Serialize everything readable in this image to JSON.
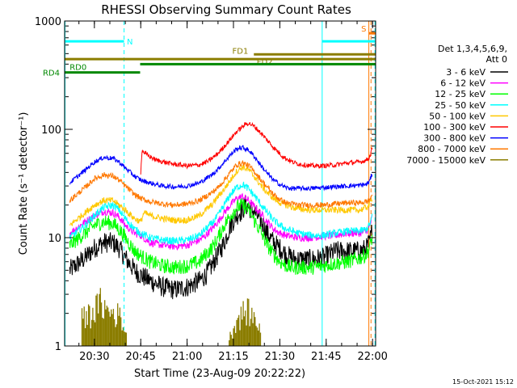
{
  "chart_data": {
    "type": "line",
    "title": "RHESSI Observing Summary Count Rates",
    "xlabel": "Start Time (23-Aug-09 20:22:22)",
    "ylabel": "Count Rate (s⁻¹ detector⁻¹)",
    "x_start_minutes": 20.37,
    "xlim_minutes": [
      20.37,
      121
    ],
    "ylim": [
      1,
      1000
    ],
    "yscale": "log",
    "xticks": [
      {
        "min": 30,
        "label": "20:30"
      },
      {
        "min": 45,
        "label": "20:45"
      },
      {
        "min": 60,
        "label": "21:00"
      },
      {
        "min": 75,
        "label": "21:15"
      },
      {
        "min": 90,
        "label": "21:30"
      },
      {
        "min": 105,
        "label": "21:45"
      },
      {
        "min": 120,
        "label": "22:00"
      }
    ],
    "yticks": [
      {
        "v": 1,
        "label": "1"
      },
      {
        "v": 10,
        "label": "10"
      },
      {
        "v": 100,
        "label": "100"
      },
      {
        "v": 1000,
        "label": "1000"
      }
    ],
    "legend": {
      "placement": "right",
      "header": [
        "Det 1,3,4,5,6,9,",
        "Att 0"
      ]
    },
    "series": [
      {
        "name": "3 - 6 keV",
        "color": "#000000",
        "x": [
          22,
          27,
          30,
          33,
          36,
          38,
          40,
          43,
          45,
          48,
          52,
          56,
          60,
          64,
          66,
          68,
          70,
          72,
          74,
          76,
          78,
          79,
          80,
          82,
          84,
          86,
          88,
          90,
          92,
          94,
          96,
          100,
          104,
          108,
          112,
          116,
          118,
          119,
          120
        ],
        "y": [
          5,
          6.5,
          8,
          9,
          9,
          8,
          6.5,
          5,
          4.5,
          4,
          3.5,
          3.3,
          3.5,
          4,
          4.5,
          5.5,
          7,
          9,
          13,
          16,
          18,
          20,
          19,
          17,
          14,
          11,
          9,
          8,
          7,
          6.5,
          6.3,
          6.3,
          6.5,
          7.5,
          7.5,
          7.5,
          8,
          9,
          12
        ]
      },
      {
        "name": "6 - 12 keV",
        "color": "#ff00ff",
        "x": [
          22,
          27,
          30,
          33,
          36,
          38,
          40,
          43,
          45,
          48,
          52,
          56,
          60,
          64,
          66,
          68,
          70,
          72,
          74,
          76,
          78,
          80,
          82,
          84,
          86,
          88,
          90,
          92,
          94,
          96,
          100,
          104,
          108,
          112,
          116,
          118,
          119,
          120
        ],
        "y": [
          11,
          14,
          16,
          17.5,
          17,
          15.5,
          13,
          11,
          10.5,
          9,
          8.5,
          8.3,
          8.5,
          9.5,
          10.5,
          12,
          14,
          17,
          20,
          23,
          24,
          22,
          19,
          16.5,
          14,
          12,
          11,
          10.5,
          10.2,
          10,
          10,
          10.3,
          10.5,
          11,
          11,
          11.5,
          12.5,
          16
        ]
      },
      {
        "name": "12 - 25 keV",
        "color": "#00ff00",
        "x": [
          22,
          27,
          30,
          33,
          36,
          38,
          40,
          43,
          45,
          48,
          52,
          56,
          60,
          64,
          66,
          68,
          70,
          72,
          74,
          76,
          78,
          80,
          82,
          84,
          86,
          88,
          90,
          92,
          94,
          96,
          100,
          104,
          108,
          112,
          116,
          118,
          119,
          120
        ],
        "y": [
          8.5,
          11,
          13,
          14,
          13.5,
          12,
          10,
          7.5,
          6.8,
          6,
          5.5,
          5.3,
          5.5,
          6,
          7,
          8,
          10,
          13,
          16,
          19,
          20,
          18,
          14,
          11,
          8.5,
          7,
          6,
          5.5,
          5.3,
          5.3,
          5.3,
          5.5,
          5.8,
          6,
          6.5,
          7,
          8,
          10.5
        ]
      },
      {
        "name": "25 - 50 keV",
        "color": "#00ffff",
        "x": [
          22,
          27,
          30,
          33,
          36,
          38,
          40,
          43,
          45,
          48,
          52,
          56,
          60,
          64,
          66,
          68,
          70,
          72,
          74,
          76,
          78,
          80,
          82,
          84,
          86,
          88,
          90,
          92,
          94,
          96,
          100,
          104,
          108,
          112,
          116,
          118,
          119,
          120
        ],
        "y": [
          10,
          13,
          16,
          19,
          20,
          18,
          15,
          12,
          11,
          10,
          9.5,
          9.3,
          9.5,
          10.5,
          12,
          13.5,
          16,
          20,
          25,
          29,
          31,
          28,
          24,
          20,
          17,
          14.5,
          13,
          12,
          11.5,
          11,
          10.5,
          10.5,
          11,
          11.5,
          11.5,
          12,
          13,
          16
        ]
      },
      {
        "name": "50 - 100 keV",
        "color": "#ffc800",
        "x": [
          22,
          27,
          30,
          33,
          36,
          38,
          40,
          43,
          45,
          46,
          48,
          52,
          56,
          60,
          64,
          66,
          68,
          70,
          72,
          74,
          76,
          78,
          80,
          82,
          84,
          86,
          88,
          90,
          92,
          94,
          96,
          100,
          104,
          108,
          112,
          116,
          118,
          119,
          120
        ],
        "y": [
          13,
          17,
          20,
          22,
          22,
          20,
          18,
          15,
          14,
          17,
          16,
          15,
          14.5,
          14.5,
          16,
          18,
          20,
          24,
          28,
          34,
          41,
          45,
          42,
          36,
          30,
          26,
          23,
          21,
          20,
          19,
          18.5,
          18,
          18,
          18,
          18,
          18,
          19,
          20,
          24
        ]
      },
      {
        "name": "100 - 300 keV",
        "color": "#ff0000",
        "x": [
          45,
          45.4,
          47,
          50,
          55,
          60,
          64,
          67,
          70,
          73,
          76,
          79,
          80,
          82,
          85,
          88,
          91,
          94,
          96,
          100,
          104,
          108,
          112,
          116,
          118,
          119,
          120
        ],
        "y": [
          40,
          64,
          58,
          52,
          48,
          46,
          47,
          51,
          60,
          75,
          95,
          112,
          114,
          105,
          85,
          68,
          56,
          50,
          48,
          46,
          46,
          47,
          49,
          50,
          52,
          55,
          68
        ]
      },
      {
        "name": "300 - 800 keV",
        "color": "#0000ff",
        "x": [
          22,
          27,
          30,
          33,
          36,
          38,
          40,
          43,
          45,
          48,
          52,
          56,
          60,
          64,
          66,
          68,
          70,
          72,
          74,
          76,
          78,
          80,
          82,
          84,
          86,
          88,
          90,
          92,
          94,
          96,
          100,
          104,
          108,
          112,
          116,
          118,
          119,
          120
        ],
        "y": [
          32,
          42,
          50,
          55,
          54,
          50,
          44,
          37,
          34,
          32,
          30,
          29.5,
          30,
          32,
          35,
          38,
          43,
          50,
          58,
          66,
          68,
          64,
          55,
          46,
          39,
          34,
          31,
          29,
          28.5,
          28.5,
          28.5,
          29,
          29.5,
          30,
          30.5,
          31,
          33,
          40
        ]
      },
      {
        "name": "800 - 7000 keV",
        "color": "#ff7800",
        "x": [
          22,
          27,
          30,
          33,
          36,
          38,
          40,
          43,
          45,
          48,
          52,
          56,
          60,
          64,
          66,
          68,
          70,
          72,
          74,
          76,
          78,
          80,
          82,
          84,
          86,
          88,
          90,
          92,
          94,
          96,
          100,
          104,
          108,
          112,
          116,
          118,
          119,
          120
        ],
        "y": [
          22,
          29,
          35,
          38,
          37,
          34,
          30,
          25,
          23,
          21.5,
          20.5,
          20,
          20.5,
          22,
          24,
          26,
          29,
          34,
          40,
          47,
          49,
          46,
          40,
          34,
          29,
          25,
          22.5,
          21,
          20.5,
          20,
          20,
          20,
          20.5,
          21,
          21,
          21.5,
          22,
          26
        ]
      },
      {
        "name": "7000 - 15000 keV",
        "color": "#8b7d00",
        "x": [
          26,
          29,
          31,
          32,
          33,
          34,
          36,
          38,
          39,
          40,
          74,
          75,
          76,
          77,
          78,
          79,
          80,
          81,
          82,
          83,
          84
        ],
        "y": [
          2,
          2.3,
          2.7,
          3,
          2.7,
          2.4,
          2.3,
          2.2,
          1.9,
          1.4,
          1.3,
          1.6,
          1.9,
          2.1,
          2.3,
          2.4,
          2.4,
          2.1,
          2.0,
          1.8,
          1.4
        ]
      }
    ],
    "annotations": {
      "bars": [
        {
          "label": "N",
          "color": "#00ffff",
          "level": 650,
          "ranges": [
            [
              20.37,
              39.6
            ],
            [
              103.7,
              121
            ]
          ]
        },
        {
          "label": "FD1",
          "color": "#8b7d00",
          "level": 492,
          "ranges": [
            [
              81.6,
              121
            ]
          ]
        },
        {
          "label": "FD2",
          "color": "#8b7d00",
          "level": 445,
          "ranges": [
            [
              20.37,
              121
            ]
          ]
        },
        {
          "label": "RD0",
          "color": "#008800",
          "level": 400,
          "ranges": [
            [
              44.8,
              121
            ]
          ]
        },
        {
          "label": "RD4",
          "color": "#008800",
          "level": 335,
          "ranges": [
            [
              20.37,
              44.8
            ]
          ]
        },
        {
          "label": "S",
          "color": "#ff7800",
          "level": 770,
          "ranges": [
            [
              118.8,
              121
            ]
          ]
        }
      ],
      "vlines": [
        {
          "min": 20.5,
          "color": "#00ffff",
          "style": "solid"
        },
        {
          "min": 39.6,
          "color": "#00ffff",
          "style": "dashed"
        },
        {
          "min": 103.7,
          "color": "#00ffff",
          "style": "solid"
        },
        {
          "min": 118.8,
          "color": "#ff7800",
          "style": "solid"
        },
        {
          "min": 119.5,
          "color": "#ff7800",
          "style": "dashed"
        },
        {
          "min": 120.8,
          "color": "#00ffff",
          "style": "dashed"
        }
      ]
    },
    "timestamp": "15-Oct-2021 15:12"
  }
}
